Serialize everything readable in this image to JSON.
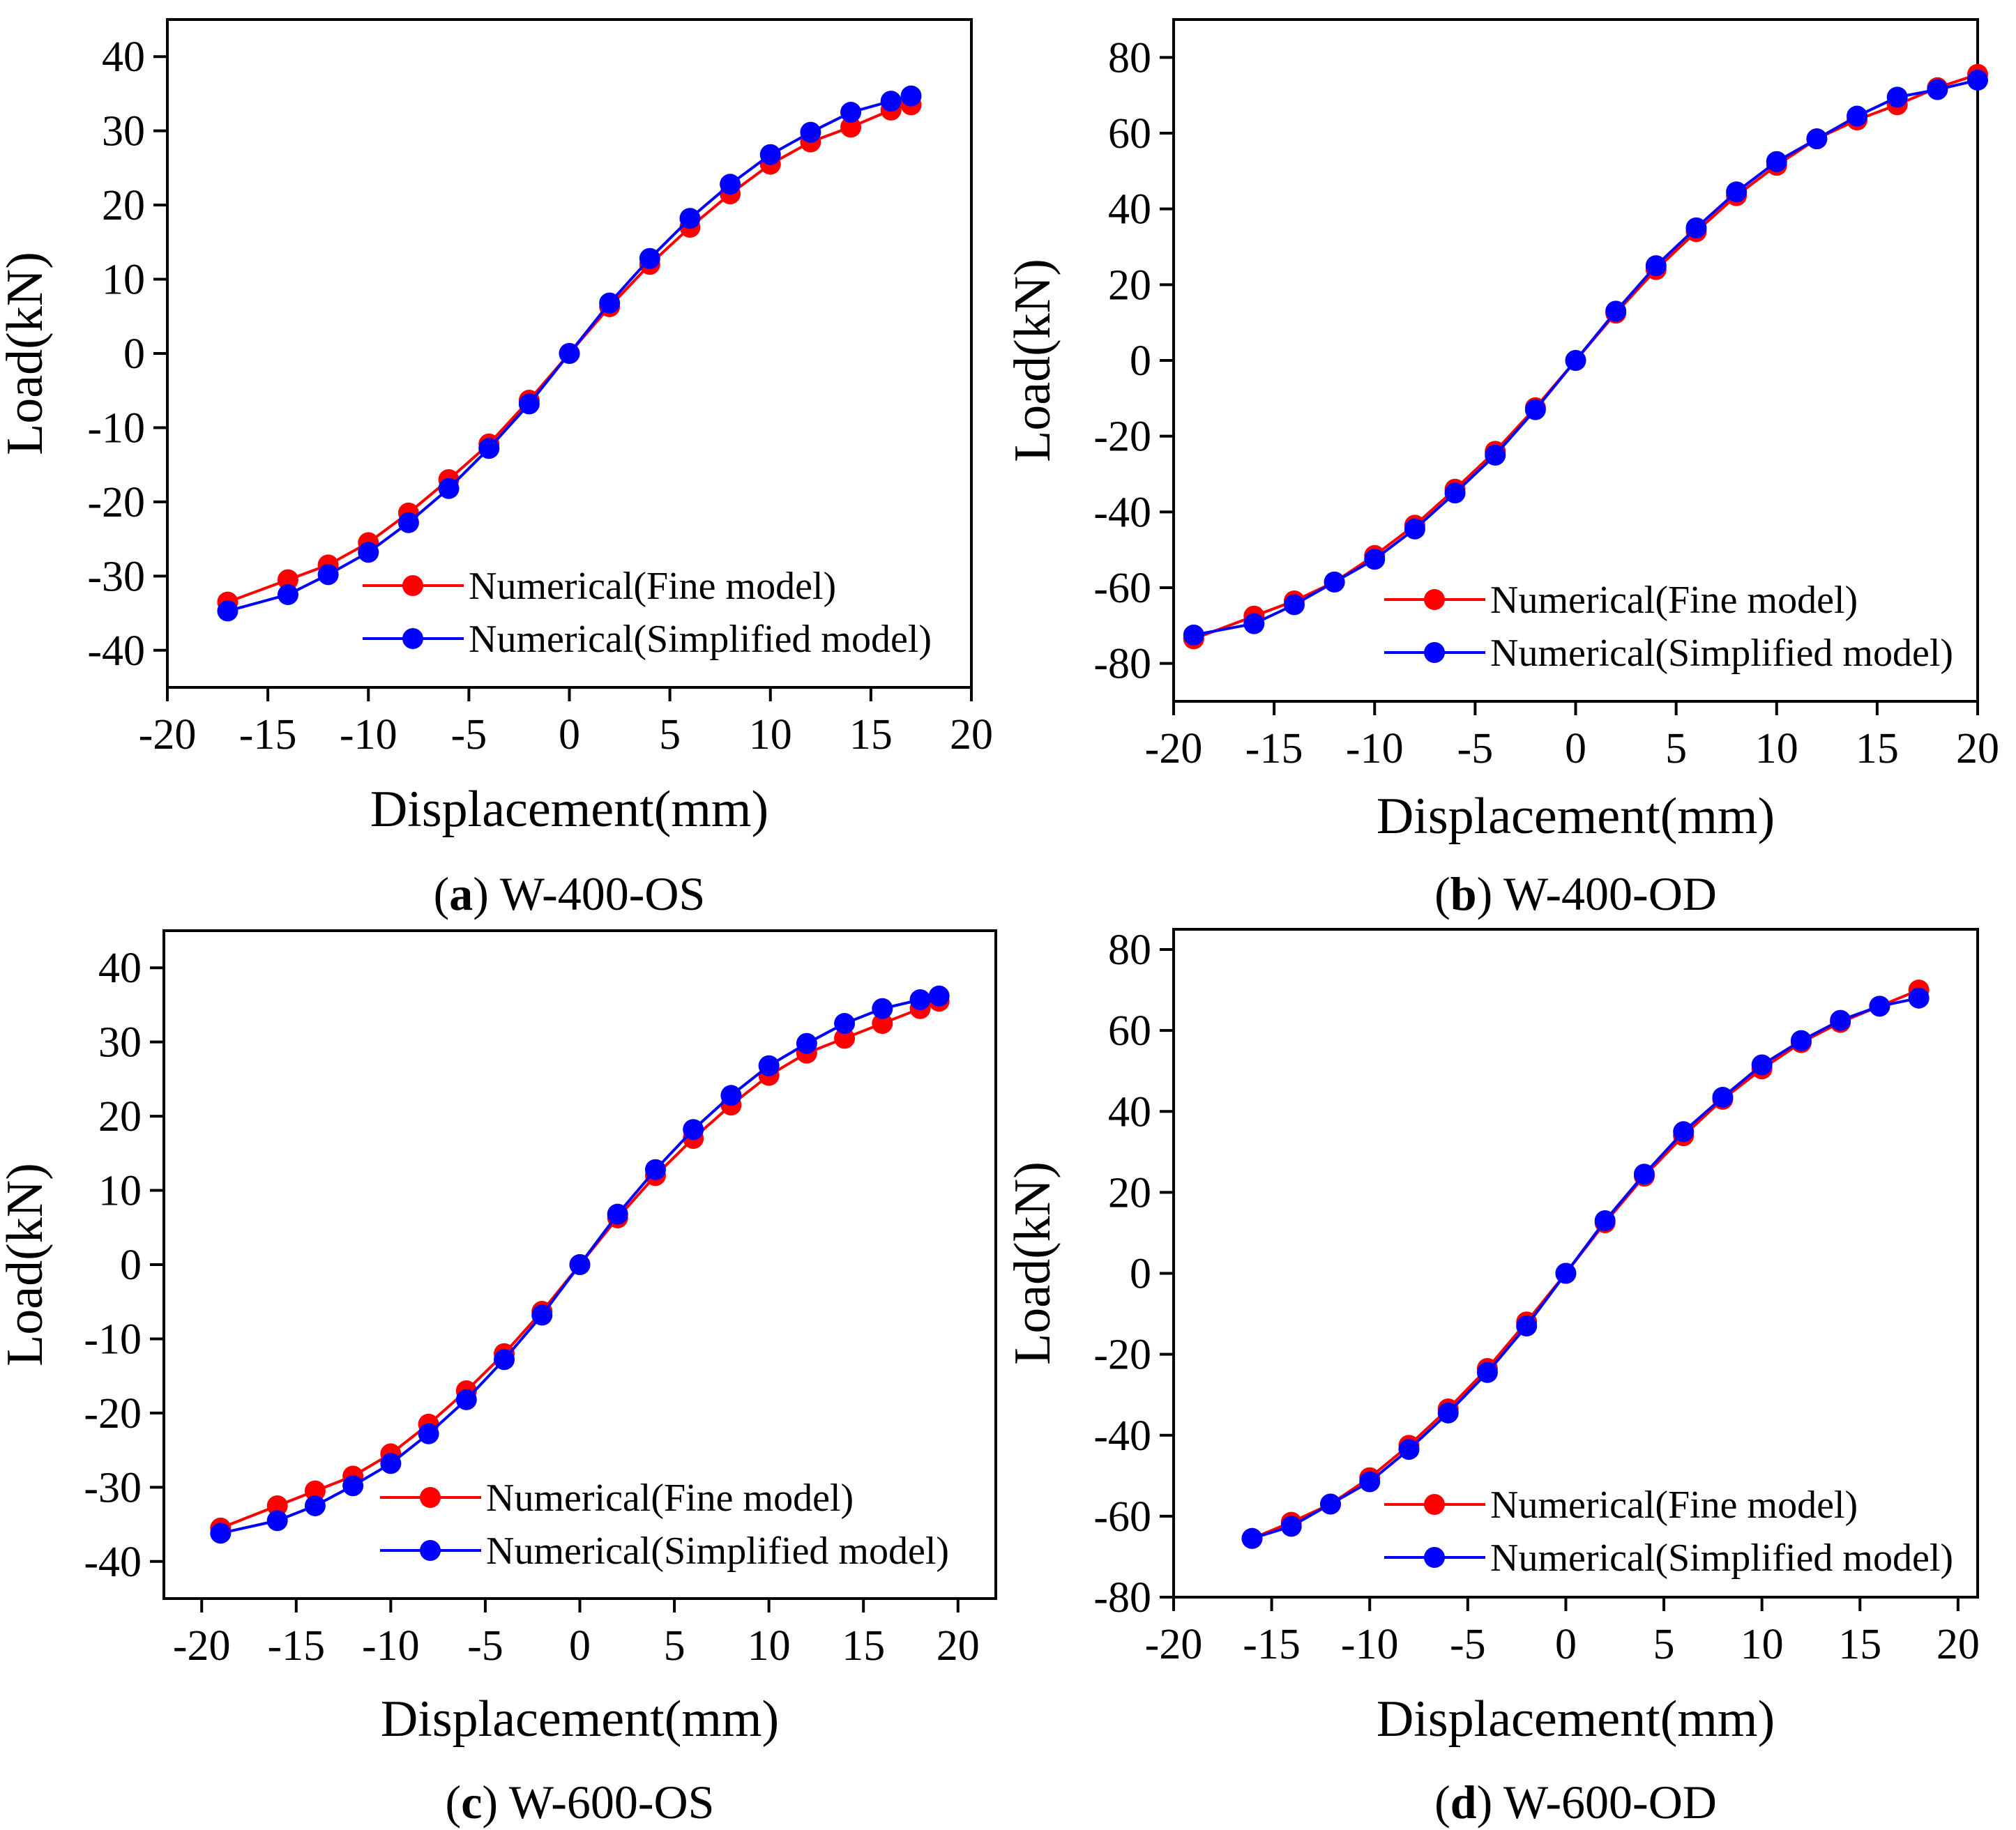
{
  "colors": {
    "fine": "#ff0000",
    "simplified": "#0000ff",
    "axis": "#000000"
  },
  "chart_data": [
    {
      "type": "line",
      "caption": {
        "tag": "a",
        "text": "W-400-OS"
      },
      "xlabel": "Displacement(mm)",
      "ylabel": "Load(kN)",
      "xlim": [
        -20,
        20
      ],
      "ylim": [
        -45,
        45
      ],
      "xticks": [
        -20,
        -15,
        -10,
        -5,
        0,
        5,
        10,
        15,
        20
      ],
      "yticks": [
        -40,
        -30,
        -20,
        -10,
        0,
        10,
        20,
        30,
        40
      ],
      "legend": "bottom-right",
      "series": [
        {
          "name": "Numerical(Fine model)",
          "color": "#ff0000",
          "x": [
            -17,
            -14,
            -12,
            -10,
            -8,
            -6,
            -4,
            -2,
            0,
            2,
            4,
            6,
            8,
            10,
            12,
            14,
            16,
            17
          ],
          "y": [
            -33.5,
            -30.5,
            -28.5,
            -25.5,
            -21.5,
            -17,
            -12.2,
            -6.3,
            0,
            6.3,
            12,
            17,
            21.5,
            25.5,
            28.5,
            30.5,
            32.8,
            33.5
          ]
        },
        {
          "name": "Numerical(Simplified model)",
          "color": "#0000ff",
          "x": [
            -17,
            -14,
            -12,
            -10,
            -8,
            -6,
            -4,
            -2,
            0,
            2,
            4,
            6,
            8,
            10,
            12,
            14,
            16,
            17
          ],
          "y": [
            -34.7,
            -32.5,
            -29.8,
            -26.8,
            -22.8,
            -18.2,
            -12.8,
            -6.8,
            0,
            6.8,
            12.8,
            18.2,
            22.8,
            26.8,
            29.8,
            32.5,
            34.0,
            34.7
          ]
        }
      ]
    },
    {
      "type": "line",
      "caption": {
        "tag": "b",
        "text": "W-400-OD"
      },
      "xlabel": "Displacement(mm)",
      "ylabel": "Load(kN)",
      "xlim": [
        -20,
        20
      ],
      "ylim": [
        -90,
        90
      ],
      "xticks": [
        -20,
        -15,
        -10,
        -5,
        0,
        5,
        10,
        15,
        20
      ],
      "yticks": [
        -80,
        -60,
        -40,
        -20,
        0,
        20,
        40,
        60,
        80
      ],
      "legend": "bottom-right",
      "series": [
        {
          "name": "Numerical(Fine model)",
          "color": "#ff0000",
          "x": [
            -19,
            -16,
            -14,
            -12,
            -10,
            -8,
            -6,
            -4,
            -2,
            0,
            2,
            4,
            6,
            8,
            10,
            12,
            14,
            16,
            18,
            20
          ],
          "y": [
            -73.5,
            -67.5,
            -63.5,
            -58.5,
            -51.5,
            -43.5,
            -34,
            -24,
            -12.5,
            0,
            12.5,
            24,
            34,
            43.5,
            51.5,
            58.5,
            63.5,
            67.5,
            72,
            75.5
          ]
        },
        {
          "name": "Numerical(Simplified model)",
          "color": "#0000ff",
          "x": [
            -19,
            -16,
            -14,
            -12,
            -10,
            -8,
            -6,
            -4,
            -2,
            0,
            2,
            4,
            6,
            8,
            10,
            12,
            14,
            16,
            18,
            20
          ],
          "y": [
            -72.5,
            -69.5,
            -64.5,
            -58.5,
            -52.5,
            -44.5,
            -35,
            -25,
            -13,
            0,
            13,
            25,
            35,
            44.5,
            52.5,
            58.5,
            64.5,
            69.5,
            71.5,
            74
          ]
        }
      ]
    },
    {
      "type": "line",
      "caption": {
        "tag": "c",
        "text": "W-600-OS"
      },
      "xlabel": "Displacement(mm)",
      "ylabel": "Load(kN)",
      "xlim": [
        -22,
        22
      ],
      "ylim": [
        -45,
        45
      ],
      "xticks": [
        -20,
        -15,
        -10,
        -5,
        0,
        5,
        10,
        15,
        20
      ],
      "yticks": [
        -40,
        -30,
        -20,
        -10,
        0,
        10,
        20,
        30,
        40
      ],
      "legend": "bottom-right",
      "series": [
        {
          "name": "Numerical(Fine model)",
          "color": "#ff0000",
          "x": [
            -19,
            -16,
            -14,
            -12,
            -10,
            -8,
            -6,
            -4,
            -2,
            0,
            2,
            4,
            6,
            8,
            10,
            12,
            14,
            16,
            18,
            19
          ],
          "y": [
            -35.5,
            -32.5,
            -30.5,
            -28.5,
            -25.5,
            -21.5,
            -17,
            -12,
            -6.3,
            0,
            6.3,
            12,
            17,
            21.5,
            25.5,
            28.5,
            30.5,
            32.5,
            34.5,
            35.5
          ]
        },
        {
          "name": "Numerical(Simplified model)",
          "color": "#0000ff",
          "x": [
            -19,
            -16,
            -14,
            -12,
            -10,
            -8,
            -6,
            -4,
            -2,
            0,
            2,
            4,
            6,
            8,
            10,
            12,
            14,
            16,
            18,
            19
          ],
          "y": [
            -36.2,
            -34.5,
            -32.5,
            -29.8,
            -26.8,
            -22.8,
            -18.2,
            -12.8,
            -6.8,
            0,
            6.8,
            12.8,
            18.2,
            22.8,
            26.8,
            29.8,
            32.5,
            34.5,
            35.7,
            36.2
          ]
        }
      ]
    },
    {
      "type": "line",
      "caption": {
        "tag": "d",
        "text": "W-600-OD"
      },
      "xlabel": "Displacement(mm)",
      "ylabel": "Load(kN)",
      "xlim": [
        -20,
        21
      ],
      "ylim": [
        -80,
        85
      ],
      "xticks": [
        -20,
        -15,
        -10,
        -5,
        0,
        5,
        10,
        15,
        20
      ],
      "yticks": [
        -80,
        -60,
        -40,
        -20,
        0,
        20,
        40,
        60,
        80
      ],
      "legend": "bottom-right",
      "series": [
        {
          "name": "Numerical(Fine model)",
          "color": "#ff0000",
          "x": [
            -16,
            -14,
            -12,
            -10,
            -8,
            -6,
            -4,
            -2,
            0,
            2,
            4,
            6,
            8,
            10,
            12,
            14,
            16,
            18
          ],
          "y": [
            -65.5,
            -61.5,
            -57,
            -50.5,
            -42.5,
            -33.5,
            -23.5,
            -12,
            0,
            12.5,
            24,
            34,
            43,
            50.5,
            57,
            62,
            66,
            70
          ]
        },
        {
          "name": "Numerical(Simplified model)",
          "color": "#0000ff",
          "x": [
            -16,
            -14,
            -12,
            -10,
            -8,
            -6,
            -4,
            -2,
            0,
            2,
            4,
            6,
            8,
            10,
            12,
            14,
            16,
            18
          ],
          "y": [
            -65.5,
            -62.5,
            -57,
            -51.5,
            -43.5,
            -34.5,
            -24.5,
            -13,
            0,
            13,
            24.5,
            35,
            43.5,
            51.5,
            57.5,
            62.5,
            66,
            68
          ]
        }
      ]
    }
  ]
}
